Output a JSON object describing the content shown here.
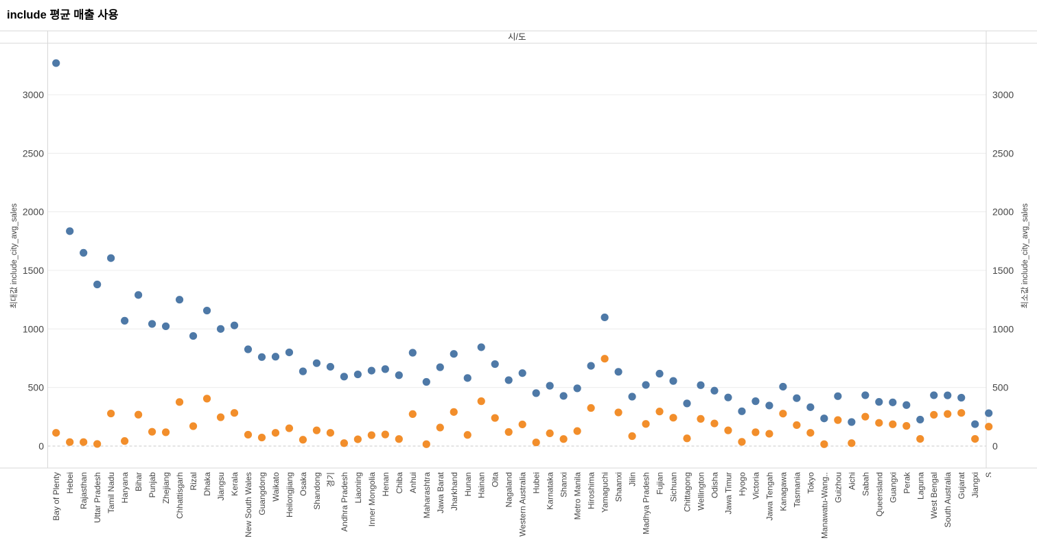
{
  "title": "include 평균 매출 사용",
  "chart_data": {
    "type": "scatter",
    "title": "include 평균 매출 사용",
    "column_header": "시/도",
    "left_axis_label": "최대값 include_city_avg_sales",
    "right_axis_label": "최소값 include_city_avg_sales",
    "y_ticks": [
      0,
      500,
      1000,
      1500,
      2000,
      2500,
      3000
    ],
    "ylim": [
      0,
      3440
    ],
    "grid": "horizontal",
    "zero_line_style": "dashed",
    "legend_position": "none",
    "categories": [
      "Bay of Plenty",
      "Hebei",
      "Rajasthan",
      "Uttar Pradesh",
      "Tamil Nadu",
      "Haryana",
      "Bihar",
      "Punjab",
      "Zhejiang",
      "Chhattisgarh",
      "Rizal",
      "Dhaka",
      "Jiangsu",
      "Kerala",
      "New South Wales",
      "Guangdong",
      "Waikato",
      "Heilongjiang",
      "Osaka",
      "Shandong",
      "경기",
      "Andhra Pradesh",
      "Liaoning",
      "Inner Mongolia",
      "Henan",
      "Chiba",
      "Anhui",
      "Maharashtra",
      "Jawa Barat",
      "Jharkhand",
      "Hunan",
      "Hainan",
      "Oita",
      "Nagaland",
      "Western Australia",
      "Hubei",
      "Karnataka",
      "Shanxi",
      "Metro Manila",
      "Hiroshima",
      "Yamaguchi",
      "Shaanxi",
      "Jilin",
      "Madhya Pradesh",
      "Fujian",
      "Sichuan",
      "Chittagong",
      "Wellington",
      "Odisha",
      "Jawa Timur",
      "Hyogo",
      "Victoria",
      "Jawa Tengah",
      "Kanagawa",
      "Tasmania",
      "Tokyo",
      "Manawatu-Wang..",
      "Guizhou",
      "Aichi",
      "Sabah",
      "Queensland",
      "Guangxi",
      "Perak",
      "Laguna",
      "West Bengal",
      "South Australia",
      "Gujarat",
      "Jiangxi",
      "S"
    ],
    "series": [
      {
        "name": "최대값 include_city_avg_sales",
        "color": "#4e79a7",
        "values": [
          3270,
          1835,
          1650,
          1380,
          1605,
          1070,
          1290,
          1043,
          1023,
          1250,
          940,
          1157,
          1000,
          1030,
          826,
          760,
          763,
          800,
          638,
          708,
          677,
          593,
          612,
          644,
          657,
          605,
          797,
          548,
          673,
          787,
          581,
          844,
          700,
          563,
          623,
          452,
          515,
          428,
          493,
          685,
          1099,
          634,
          422,
          522,
          618,
          556,
          364,
          520,
          473,
          415,
          297,
          383,
          346,
          507,
          409,
          332,
          236,
          426,
          205,
          434,
          377,
          373,
          350,
          226,
          434,
          433,
          413,
          187,
          281
        ]
      },
      {
        "name": "최소값 include_city_avg_sales",
        "color": "#f28e2b",
        "values": [
          113,
          34,
          34,
          18,
          278,
          43,
          268,
          122,
          118,
          376,
          170,
          405,
          246,
          283,
          97,
          73,
          113,
          152,
          54,
          134,
          113,
          25,
          58,
          93,
          99,
          60,
          273,
          16,
          158,
          291,
          95,
          383,
          240,
          120,
          185,
          31,
          109,
          60,
          128,
          325,
          746,
          287,
          85,
          189,
          295,
          242,
          66,
          232,
          193,
          134,
          36,
          118,
          105,
          277,
          179,
          113,
          16,
          222,
          25,
          251,
          198,
          186,
          172,
          61,
          267,
          274,
          283,
          61,
          166
        ]
      }
    ]
  },
  "colors": {
    "blue_series": "#4e79a7",
    "orange_series": "#f28e2b",
    "gridline": "#ececec",
    "zero_line": "#c9c9c9",
    "border_line": "#d7d7d7",
    "tick_text": "#444444",
    "header_text": "#333333"
  }
}
